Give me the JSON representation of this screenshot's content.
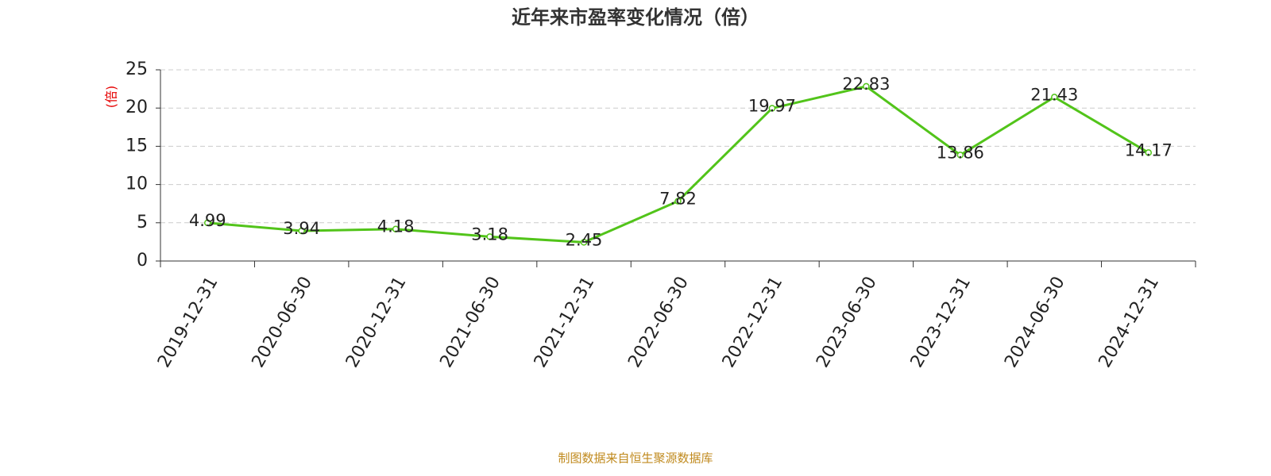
{
  "chart_data": {
    "type": "line",
    "title": "近年来市盈率变化情况（倍）",
    "y_label": "(倍)",
    "source": "制图数据来自恒生聚源数据库",
    "categories": [
      "2019-12-31",
      "2020-06-30",
      "2020-12-31",
      "2021-06-30",
      "2021-12-31",
      "2022-06-30",
      "2022-12-31",
      "2023-06-30",
      "2023-12-31",
      "2024-06-30",
      "2024-12-31"
    ],
    "values": [
      4.99,
      3.94,
      4.18,
      3.18,
      2.45,
      7.82,
      19.97,
      22.83,
      13.86,
      21.43,
      14.17
    ],
    "color": "#52c41a",
    "ylim": [
      0,
      25
    ],
    "yticks": [
      0,
      5,
      10,
      15,
      20,
      25
    ],
    "grid": true
  }
}
